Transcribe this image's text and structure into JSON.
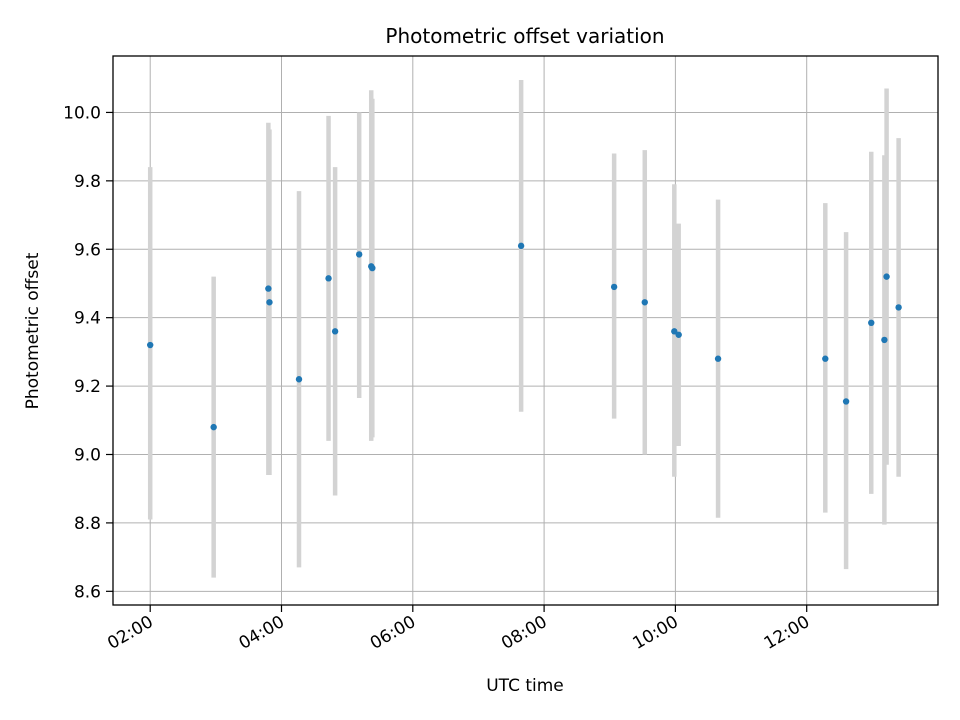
{
  "chart_data": {
    "type": "scatter",
    "title": "Photometric offset variation",
    "xlabel": "UTC time",
    "ylabel": "Photometric offset",
    "grid": true,
    "x_axis": "time",
    "xlim": [
      "01:26",
      "14:00"
    ],
    "ylim": [
      8.56,
      10.165
    ],
    "x_ticks": [
      "02:00",
      "04:00",
      "06:00",
      "08:00",
      "10:00",
      "12:00"
    ],
    "y_ticks": [
      "8.6",
      "8.8",
      "9.0",
      "9.2",
      "9.4",
      "9.6",
      "9.8",
      "10.0"
    ],
    "marker_color": "#1f77b4",
    "errorbar_color": "#d3d3d3",
    "points": [
      {
        "x": "02:00",
        "y": 9.32,
        "err_low": 8.81,
        "err_high": 9.84
      },
      {
        "x": "02:58",
        "y": 9.08,
        "err_low": 8.64,
        "err_high": 9.52
      },
      {
        "x": "03:48",
        "y": 9.485,
        "err_low": 8.94,
        "err_high": 9.97
      },
      {
        "x": "03:49",
        "y": 9.445,
        "err_low": 8.94,
        "err_high": 9.95
      },
      {
        "x": "04:16",
        "y": 9.22,
        "err_low": 8.67,
        "err_high": 9.77
      },
      {
        "x": "04:43",
        "y": 9.515,
        "err_low": 9.04,
        "err_high": 9.99
      },
      {
        "x": "04:49",
        "y": 9.36,
        "err_low": 8.88,
        "err_high": 9.84
      },
      {
        "x": "05:11",
        "y": 9.585,
        "err_low": 9.165,
        "err_high": 10.0
      },
      {
        "x": "05:22",
        "y": 9.55,
        "err_low": 9.04,
        "err_high": 10.065
      },
      {
        "x": "05:23",
        "y": 9.545,
        "err_low": 9.05,
        "err_high": 10.04
      },
      {
        "x": "07:39",
        "y": 9.61,
        "err_low": 9.125,
        "err_high": 10.095
      },
      {
        "x": "09:04",
        "y": 9.49,
        "err_low": 9.105,
        "err_high": 9.88
      },
      {
        "x": "09:32",
        "y": 9.445,
        "err_low": 9.0,
        "err_high": 9.89
      },
      {
        "x": "09:59",
        "y": 9.36,
        "err_low": 8.935,
        "err_high": 9.79
      },
      {
        "x": "10:03",
        "y": 9.35,
        "err_low": 9.025,
        "err_high": 9.675
      },
      {
        "x": "10:39",
        "y": 9.28,
        "err_low": 8.815,
        "err_high": 9.745
      },
      {
        "x": "12:17",
        "y": 9.28,
        "err_low": 8.83,
        "err_high": 9.735
      },
      {
        "x": "12:36",
        "y": 9.155,
        "err_low": 8.665,
        "err_high": 9.65
      },
      {
        "x": "12:59",
        "y": 9.385,
        "err_low": 8.885,
        "err_high": 9.885
      },
      {
        "x": "13:11",
        "y": 9.335,
        "err_low": 8.795,
        "err_high": 9.875
      },
      {
        "x": "13:13",
        "y": 9.52,
        "err_low": 8.97,
        "err_high": 10.07
      },
      {
        "x": "13:24",
        "y": 9.43,
        "err_low": 8.935,
        "err_high": 9.925
      }
    ]
  }
}
